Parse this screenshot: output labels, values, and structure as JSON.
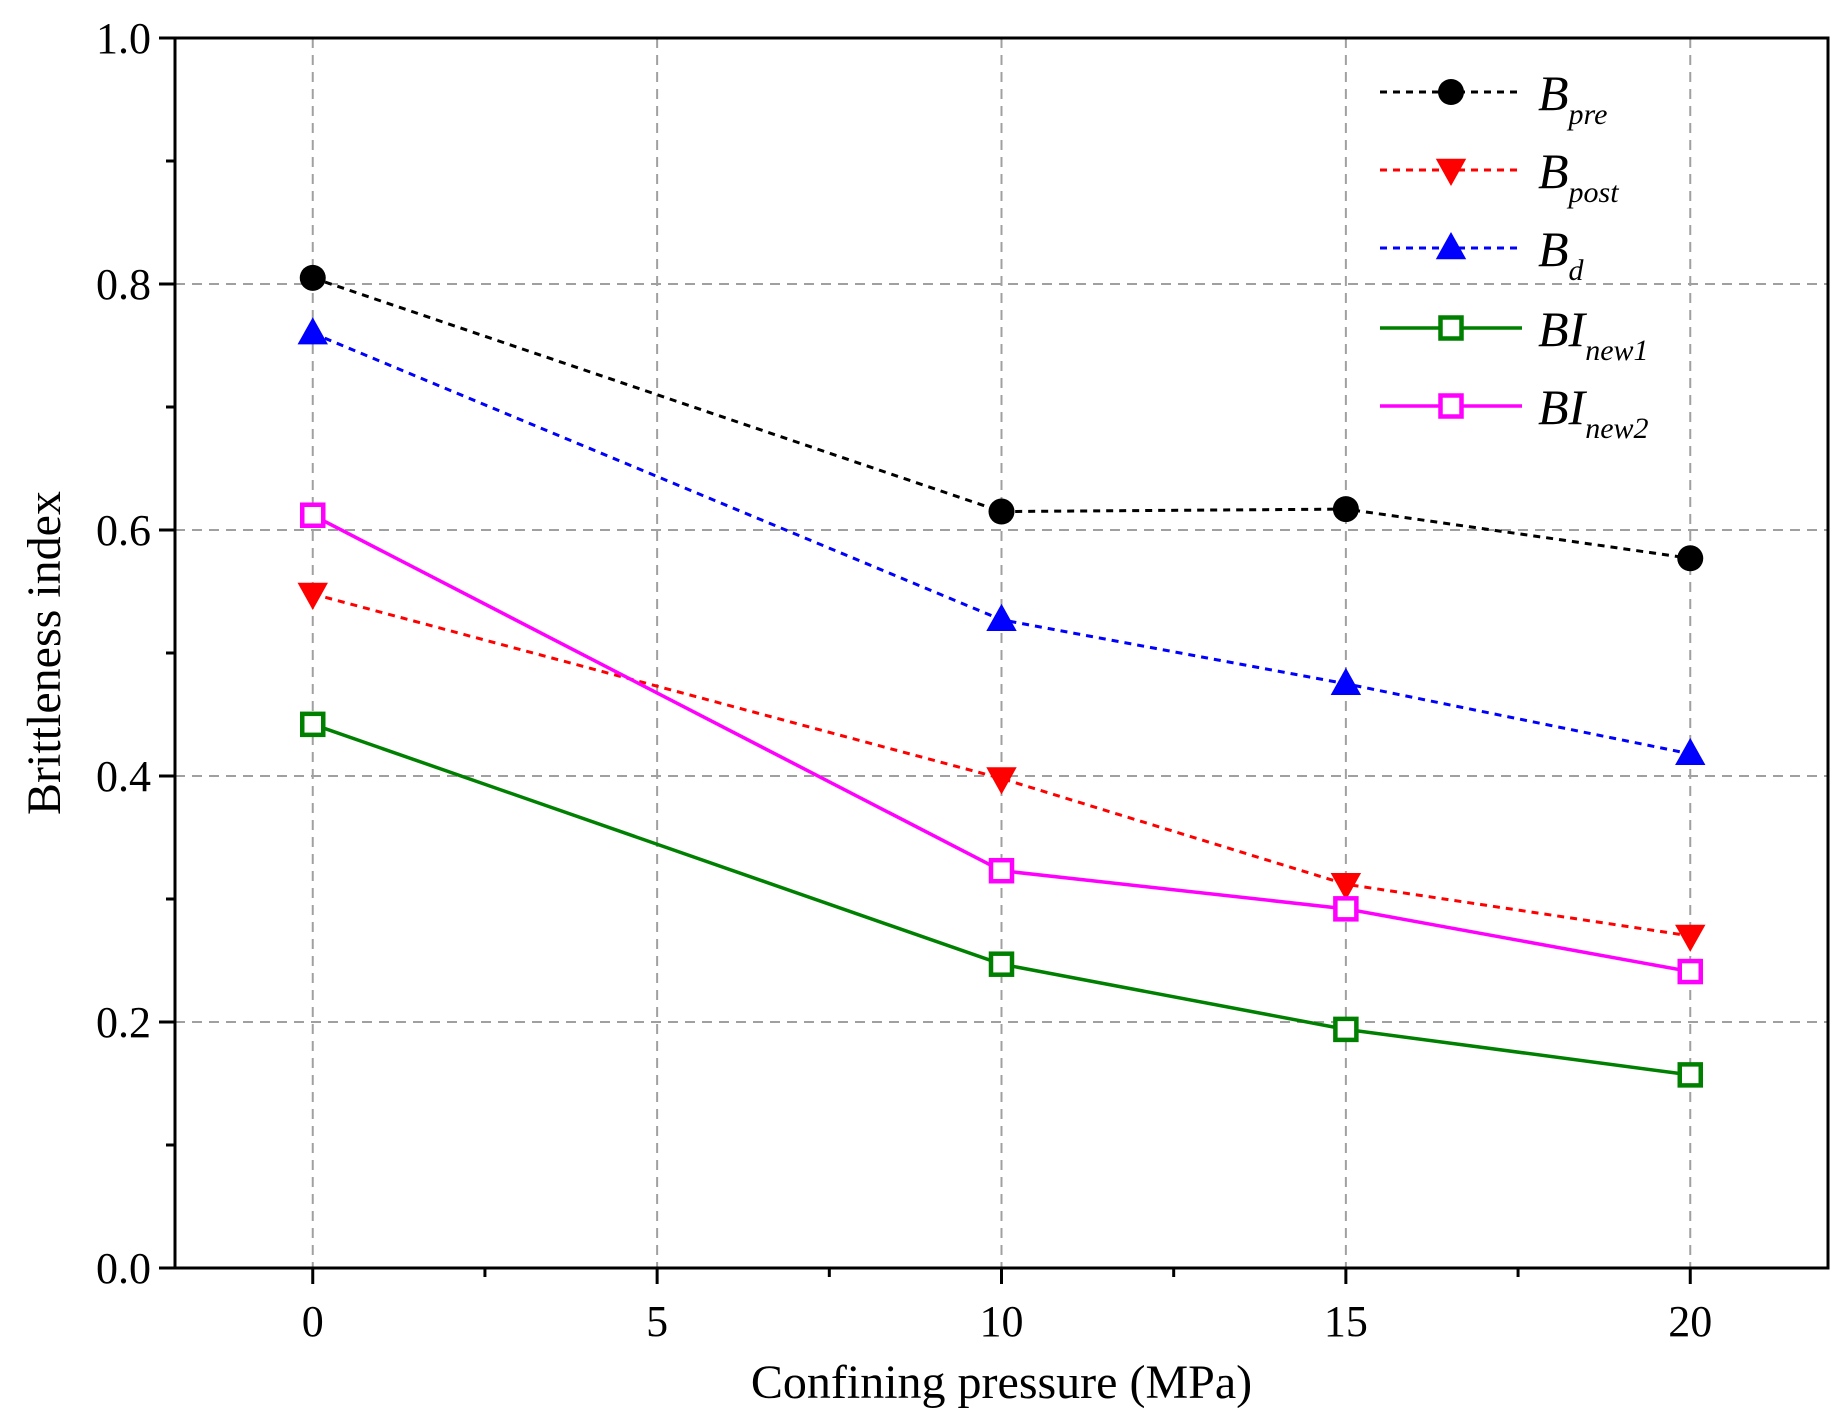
{
  "chart_data": {
    "type": "line",
    "title": "",
    "xlabel": "Confining pressure (MPa)",
    "ylabel": "Brittleness index",
    "xlim": [
      -2,
      22
    ],
    "ylim": [
      0.0,
      1.0
    ],
    "x_ticks": [
      0,
      5,
      10,
      15,
      20
    ],
    "x_tick_labels": [
      "0",
      "5",
      "10",
      "15",
      "20"
    ],
    "y_ticks": [
      0.0,
      0.2,
      0.4,
      0.6,
      0.8,
      1.0
    ],
    "y_tick_labels": [
      "0.0",
      "0.2",
      "0.4",
      "0.6",
      "0.8",
      "1.0"
    ],
    "grid": true,
    "legend_position": "top-right",
    "x": [
      0,
      10,
      15,
      20
    ],
    "series": [
      {
        "key": "bpre",
        "name_main": "B",
        "name_sub": "pre",
        "color": "#000000",
        "dash": "dotted",
        "marker": "circle",
        "values": [
          0.805,
          0.615,
          0.617,
          0.577
        ]
      },
      {
        "key": "bpost",
        "name_main": "B",
        "name_sub": "post",
        "color": "#ff0000",
        "dash": "dotted",
        "marker": "triangle-down",
        "values": [
          0.548,
          0.398,
          0.312,
          0.27
        ]
      },
      {
        "key": "bd",
        "name_main": "B",
        "name_sub": "d",
        "color": "#0000ff",
        "dash": "dotted",
        "marker": "triangle-up",
        "values": [
          0.76,
          0.527,
          0.475,
          0.418
        ]
      },
      {
        "key": "binew1",
        "name_main": "BI",
        "name_sub": "new1",
        "color": "#008000",
        "dash": "solid",
        "marker": "square-open",
        "values": [
          0.442,
          0.247,
          0.194,
          0.157
        ]
      },
      {
        "key": "binew2",
        "name_main": "BI",
        "name_sub": "new2",
        "color": "#ff00ff",
        "dash": "solid",
        "marker": "square-open",
        "values": [
          0.612,
          0.323,
          0.292,
          0.241
        ]
      }
    ]
  }
}
